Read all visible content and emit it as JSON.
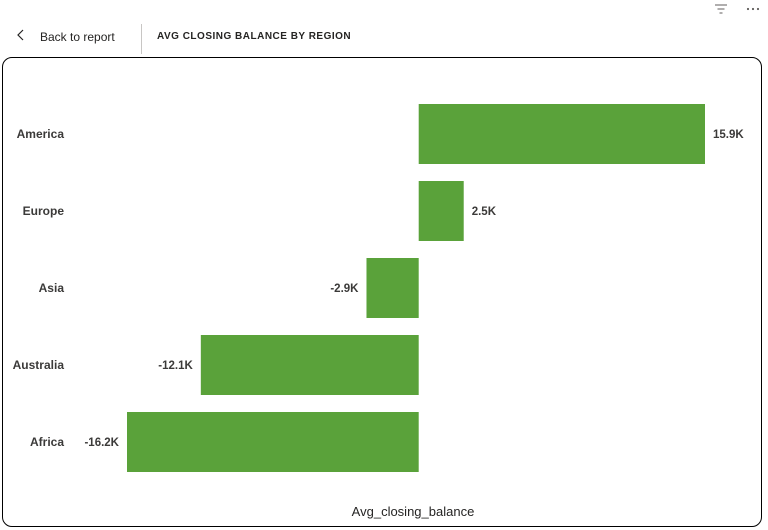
{
  "toolbar": {
    "icons": [
      "filter-icon",
      "more-options-icon"
    ]
  },
  "header": {
    "back_label": "Back to report",
    "back_icon": "chevron-left-icon",
    "visual_title": "AVG CLOSING BALANCE BY REGION"
  },
  "colors": {
    "bar": "#5aa23a",
    "text": "#252423"
  },
  "chart_data": {
    "type": "bar",
    "orientation": "horizontal",
    "title": "AVG CLOSING BALANCE BY REGION",
    "xlabel": "Avg_closing_balance",
    "ylabel": "",
    "categories": [
      "America",
      "Europe",
      "Asia",
      "Australia",
      "Africa"
    ],
    "values": [
      15900,
      2500,
      -2900,
      -12100,
      -16200
    ],
    "data_labels": [
      "15.9K",
      "2.5K",
      "-2.9K",
      "-12.1K",
      "-16.2K"
    ],
    "xlim": [
      -16200,
      15900
    ],
    "grid": false,
    "legend": "none"
  }
}
